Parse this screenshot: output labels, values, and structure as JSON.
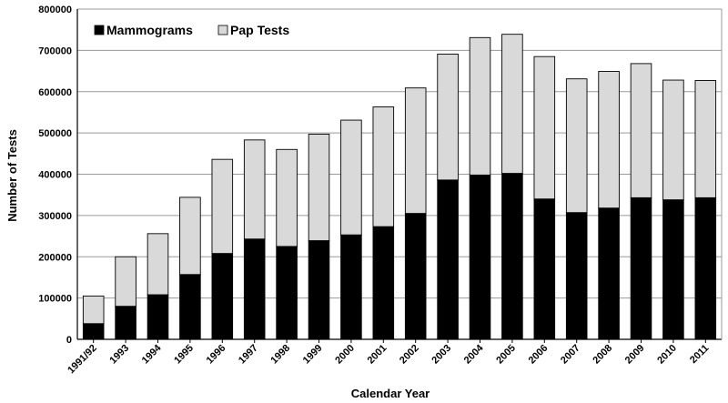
{
  "chart_data": {
    "type": "bar",
    "stacked": true,
    "title": "",
    "xlabel": "Calendar Year",
    "ylabel": "Number of Tests",
    "ylim": [
      0,
      800000
    ],
    "yticks": [
      "0",
      "100000",
      "200000",
      "300000",
      "400000",
      "500000",
      "600000",
      "700000",
      "800000"
    ],
    "grid": true,
    "legend_position": "top-left",
    "categories": [
      "1991/92",
      "1993",
      "1994",
      "1995",
      "1996",
      "1997",
      "1998",
      "1999",
      "2000",
      "2001",
      "2002",
      "2003",
      "2004",
      "2005",
      "2006",
      "2007",
      "2008",
      "2009",
      "2010",
      "2011"
    ],
    "series": [
      {
        "name": "Mammograms",
        "color": "#000000",
        "values": [
          38000,
          80000,
          108000,
          157000,
          208000,
          243000,
          225000,
          239000,
          253000,
          273000,
          305000,
          386000,
          398000,
          402000,
          340000,
          307000,
          318000,
          343000,
          338000,
          343000
        ]
      },
      {
        "name": "Pap Tests",
        "color": "#d9d9d9",
        "values": [
          67000,
          120000,
          148000,
          187000,
          228000,
          240000,
          235000,
          258000,
          278000,
          290000,
          304000,
          305000,
          333000,
          337000,
          345000,
          324000,
          331000,
          325000,
          290000,
          284000
        ]
      }
    ]
  }
}
